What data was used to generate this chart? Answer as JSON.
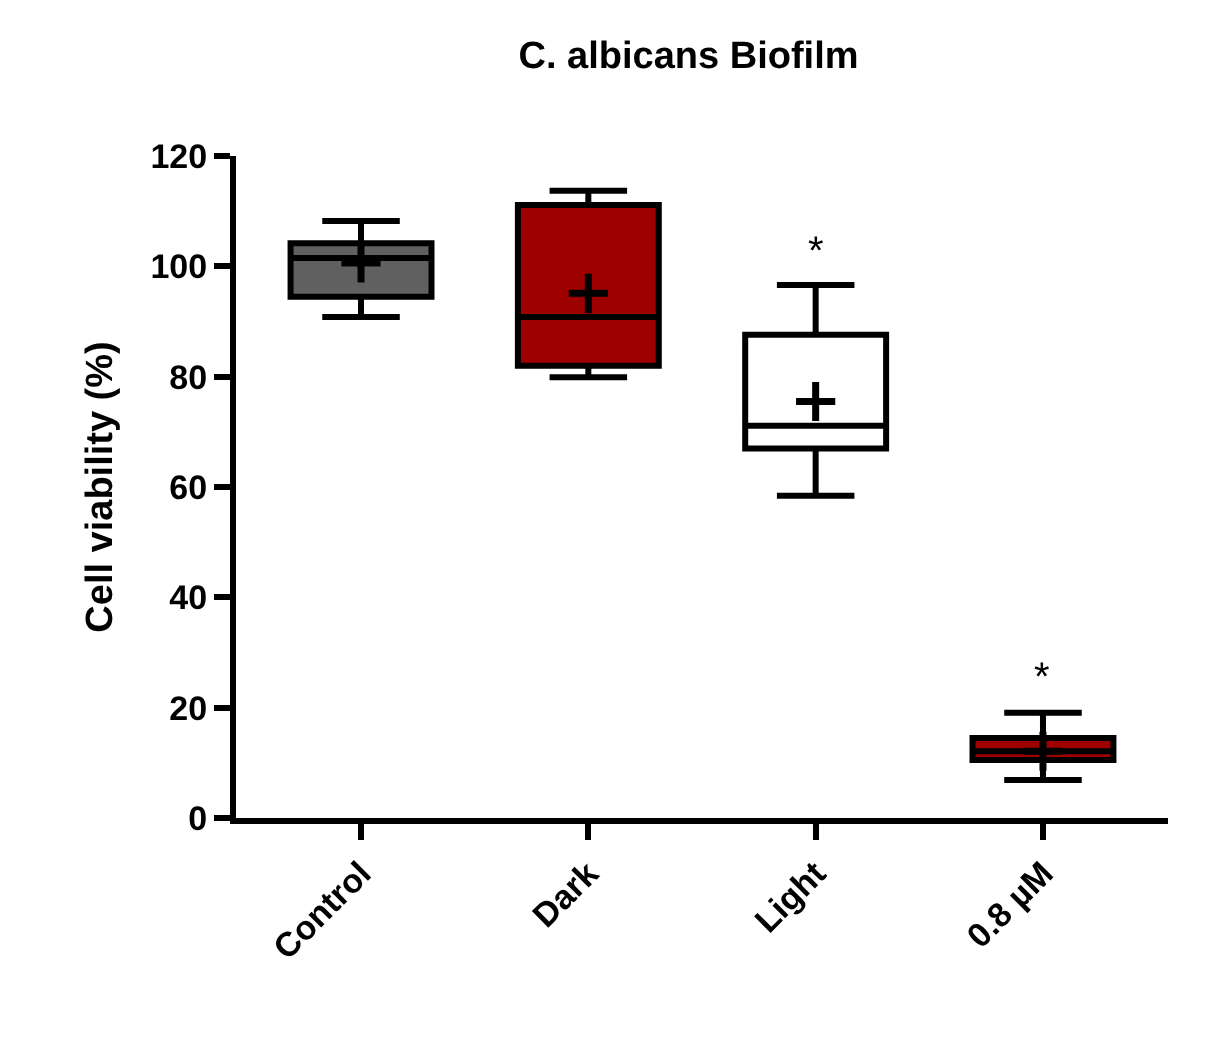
{
  "chart_data": {
    "type": "box",
    "title": "C. albicans Biofilm",
    "ylabel": "Cell viability (%)",
    "categories": [
      "Control",
      "Dark",
      "Light",
      "0.8 µM"
    ],
    "colors": [
      "#606060",
      "#9e0000",
      "#ffffff",
      "#9e0000"
    ],
    "boxes": [
      {
        "low": 90.8,
        "q1": 94.5,
        "median": 101.5,
        "q3": 104.2,
        "high": 108.2,
        "mean": 100.6
      },
      {
        "low": 79.9,
        "q1": 82,
        "median": 90.8,
        "q3": 111.1,
        "high": 113.7,
        "mean": 95.1
      },
      {
        "low": 58.4,
        "q1": 67,
        "median": 71.1,
        "q3": 87.6,
        "high": 96.6,
        "mean": 75.5
      },
      {
        "low": 6.9,
        "q1": 10.5,
        "median": 12.1,
        "q3": 14.5,
        "high": 19.1,
        "mean": 12.1
      }
    ],
    "ylim": [
      0,
      120
    ],
    "yticks": [
      0,
      20,
      40,
      60,
      80,
      100,
      120
    ],
    "annotations": [
      {
        "text": "*",
        "x": "Light",
        "y": 96.6
      },
      {
        "text": "*",
        "x": "0.8 µM",
        "y": 19.1
      }
    ]
  }
}
